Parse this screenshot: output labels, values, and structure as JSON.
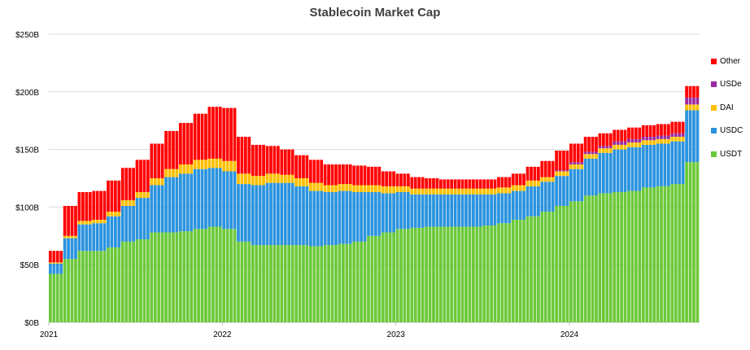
{
  "chart_data": {
    "type": "bar",
    "stacked": true,
    "title": "Stablecoin Market Cap",
    "xlabel": "",
    "ylabel": "",
    "ylim": [
      0,
      250
    ],
    "y_unit": "billion USD",
    "y_ticks": [
      "$0B",
      "$50B",
      "$100B",
      "$150B",
      "$200B",
      "$250B"
    ],
    "x_ticks": [
      "2021",
      "2022",
      "2023",
      "2024"
    ],
    "x_range": [
      "2021-01",
      "2024-09"
    ],
    "grid": "horizontal",
    "legend_position": "right",
    "x": [
      "2021-01",
      "2021-02",
      "2021-03",
      "2021-04",
      "2021-05",
      "2021-06",
      "2021-07",
      "2021-08",
      "2021-09",
      "2021-10",
      "2021-11",
      "2021-12",
      "2022-01",
      "2022-02",
      "2022-03",
      "2022-04",
      "2022-05",
      "2022-06",
      "2022-07",
      "2022-08",
      "2022-09",
      "2022-10",
      "2022-11",
      "2022-12",
      "2023-01",
      "2023-02",
      "2023-03",
      "2023-04",
      "2023-05",
      "2023-06",
      "2023-07",
      "2023-08",
      "2023-09",
      "2023-10",
      "2023-11",
      "2023-12",
      "2024-01",
      "2024-02",
      "2024-03",
      "2024-04",
      "2024-05",
      "2024-06",
      "2024-07",
      "2024-08",
      "2024-09"
    ],
    "series": [
      {
        "name": "USDT",
        "color": "#6cc93a",
        "values": [
          42,
          55,
          62,
          62,
          65,
          70,
          72,
          78,
          78,
          79,
          81,
          83,
          81,
          70,
          67,
          67,
          67,
          67,
          66,
          67,
          68,
          70,
          75,
          78,
          81,
          82,
          83,
          83,
          83,
          83,
          84,
          86,
          89,
          92,
          96,
          101,
          105,
          110,
          112,
          113,
          114,
          117,
          118,
          120,
          139
        ]
      },
      {
        "name": "USDC",
        "color": "#2b93de",
        "values": [
          9,
          18,
          23,
          24,
          27,
          31,
          36,
          41,
          48,
          50,
          52,
          51,
          50,
          50,
          52,
          54,
          54,
          51,
          48,
          46,
          46,
          43,
          38,
          34,
          32,
          29,
          28,
          28,
          28,
          28,
          27,
          26,
          25,
          26,
          26,
          26,
          28,
          32,
          35,
          37,
          38,
          37,
          37,
          37,
          45
        ]
      },
      {
        "name": "DAI",
        "color": "#ffc000",
        "values": [
          1,
          2,
          3,
          3,
          4,
          5,
          5,
          6,
          7,
          8,
          8,
          8,
          9,
          9,
          8,
          8,
          7,
          7,
          7,
          6,
          6,
          6,
          6,
          6,
          5,
          5,
          5,
          5,
          5,
          5,
          5,
          5,
          5,
          5,
          4,
          4,
          4,
          4,
          4,
          4,
          4,
          4,
          4,
          4,
          5
        ]
      },
      {
        "name": "USDe",
        "color": "#9a2aa0",
        "values": [
          0,
          0,
          0,
          0,
          0,
          0,
          0,
          0,
          0,
          0,
          0,
          0,
          0,
          0,
          0,
          0,
          0,
          0,
          0,
          0,
          0,
          0,
          0,
          0,
          0,
          0,
          0,
          0,
          0,
          0,
          0,
          0,
          0,
          0,
          0,
          1,
          2,
          2,
          2,
          3,
          3,
          3,
          3,
          3,
          6
        ]
      },
      {
        "name": "Other",
        "color": "#ff0000",
        "values": [
          10,
          26,
          25,
          25,
          27,
          28,
          28,
          30,
          33,
          36,
          40,
          45,
          46,
          32,
          27,
          24,
          22,
          20,
          20,
          18,
          17,
          17,
          16,
          13,
          11,
          10,
          9,
          8,
          8,
          8,
          8,
          9,
          10,
          12,
          14,
          17,
          16,
          13,
          11,
          10,
          10,
          10,
          10,
          10,
          10
        ]
      }
    ]
  }
}
